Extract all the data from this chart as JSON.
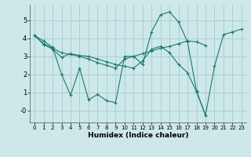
{
  "xlabel": "Humidex (Indice chaleur)",
  "bg_color": "#cce8e8",
  "line_color": "#1a7a6e",
  "grid_color": "#aacfcf",
  "lines": [
    [
      4.15,
      3.85,
      3.5,
      2.0,
      0.85,
      2.35,
      0.6,
      0.9,
      0.55,
      0.45,
      3.0,
      3.0,
      2.55,
      4.35,
      5.3,
      5.45,
      4.9,
      3.8,
      1.1,
      -0.25,
      2.45,
      4.2,
      4.35,
      4.5
    ],
    [
      4.15,
      3.65,
      3.4,
      2.95,
      3.15,
      3.05,
      3.0,
      2.85,
      2.7,
      2.55,
      2.45,
      2.35,
      2.75,
      3.4,
      3.55,
      3.2,
      2.55,
      2.1,
      1.05,
      -0.25,
      null,
      null,
      null,
      null
    ],
    [
      4.15,
      3.7,
      3.45,
      3.2,
      3.1,
      3.0,
      2.85,
      2.65,
      2.5,
      2.35,
      2.85,
      3.0,
      3.15,
      3.3,
      3.45,
      3.55,
      3.7,
      3.85,
      3.8,
      3.6,
      null,
      null,
      null,
      null
    ]
  ],
  "xlim": [
    -0.5,
    23.5
  ],
  "ylim": [
    -0.65,
    5.85
  ],
  "xticks": [
    0,
    1,
    2,
    3,
    4,
    5,
    6,
    7,
    8,
    9,
    10,
    11,
    12,
    13,
    14,
    15,
    16,
    17,
    18,
    19,
    20,
    21,
    22,
    23
  ],
  "yticks": [
    0,
    1,
    2,
    3,
    4,
    5
  ],
  "ytick_labels": [
    "-0",
    "1",
    "2",
    "3",
    "4",
    "5"
  ],
  "marker": "+"
}
